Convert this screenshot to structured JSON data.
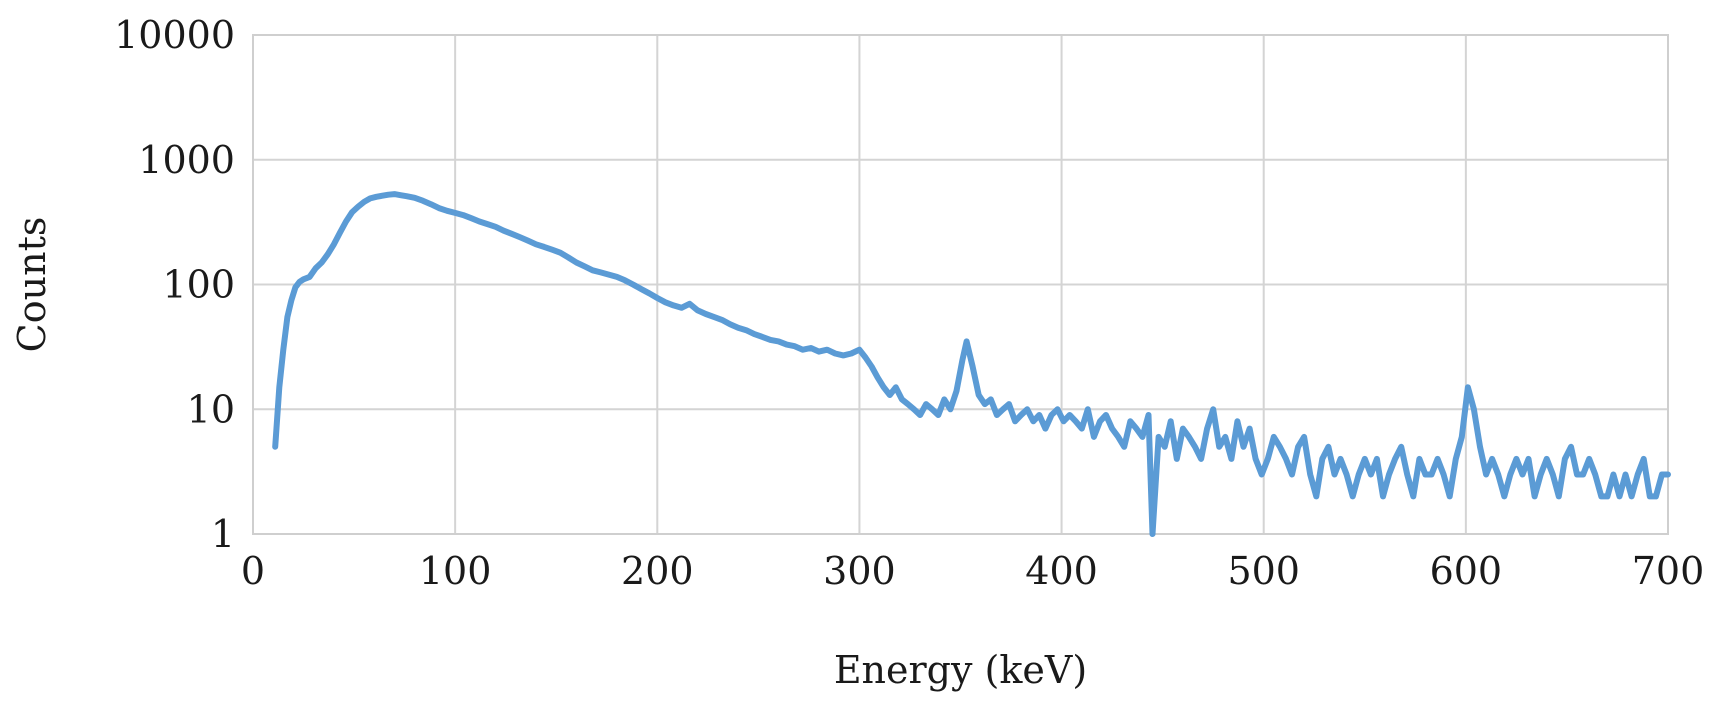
{
  "chart_data": {
    "type": "line",
    "title": "",
    "xlabel": "Energy (keV)",
    "ylabel": "Counts",
    "xlim": [
      0,
      700
    ],
    "ylim": [
      1,
      10000
    ],
    "yscale": "log",
    "grid": true,
    "legend": "none",
    "x_ticks": [
      "0",
      "100",
      "200",
      "300",
      "400",
      "500",
      "600",
      "700"
    ],
    "y_ticks": [
      "1",
      "10",
      "100",
      "1000",
      "10000"
    ],
    "x_tick_values": [
      0,
      100,
      200,
      300,
      400,
      500,
      600,
      700
    ],
    "y_tick_values": [
      1,
      10,
      100,
      1000,
      10000
    ],
    "series": [
      {
        "name": "Counts",
        "color": "#5b9bd5",
        "x": [
          11,
          13,
          15,
          17,
          19,
          21,
          23,
          25,
          28,
          31,
          34,
          37,
          40,
          43,
          46,
          49,
          52,
          55,
          58,
          61,
          64,
          67,
          70,
          73,
          76,
          80,
          84,
          88,
          92,
          96,
          100,
          104,
          108,
          112,
          116,
          120,
          124,
          128,
          132,
          136,
          140,
          144,
          148,
          152,
          156,
          160,
          164,
          168,
          172,
          176,
          180,
          184,
          188,
          192,
          196,
          200,
          204,
          208,
          212,
          216,
          220,
          224,
          228,
          232,
          236,
          240,
          244,
          248,
          252,
          256,
          260,
          264,
          268,
          272,
          276,
          280,
          284,
          288,
          292,
          296,
          300,
          303,
          306,
          309,
          312,
          315,
          318,
          321,
          324,
          327,
          330,
          333,
          336,
          339,
          342,
          345,
          348,
          351,
          353,
          356,
          359,
          362,
          365,
          368,
          371,
          374,
          377,
          380,
          383,
          386,
          389,
          392,
          395,
          398,
          401,
          404,
          407,
          410,
          413,
          416,
          419,
          422,
          425,
          428,
          431,
          434,
          437,
          440,
          443,
          445,
          448,
          451,
          454,
          457,
          460,
          463,
          466,
          469,
          472,
          475,
          478,
          481,
          484,
          487,
          490,
          493,
          496,
          499,
          502,
          505,
          508,
          511,
          514,
          517,
          520,
          523,
          526,
          529,
          532,
          535,
          538,
          541,
          544,
          547,
          550,
          553,
          556,
          559,
          562,
          565,
          568,
          571,
          574,
          577,
          580,
          583,
          586,
          589,
          592,
          595,
          598,
          601,
          604,
          607,
          610,
          613,
          616,
          619,
          622,
          625,
          628,
          631,
          634,
          637,
          640,
          643,
          646,
          649,
          652,
          655,
          658,
          661,
          664,
          667,
          670,
          673,
          676,
          679,
          682,
          685,
          688,
          691,
          694,
          697,
          700
        ],
        "values": [
          5,
          15,
          30,
          55,
          75,
          95,
          105,
          110,
          115,
          135,
          150,
          175,
          210,
          260,
          320,
          380,
          420,
          460,
          490,
          505,
          515,
          525,
          530,
          520,
          510,
          495,
          470,
          440,
          410,
          390,
          375,
          360,
          340,
          320,
          305,
          290,
          270,
          255,
          240,
          225,
          210,
          200,
          190,
          180,
          165,
          150,
          140,
          130,
          125,
          120,
          115,
          108,
          100,
          92,
          85,
          78,
          72,
          68,
          65,
          70,
          62,
          58,
          55,
          52,
          48,
          45,
          43,
          40,
          38,
          36,
          35,
          33,
          32,
          30,
          31,
          29,
          30,
          28,
          27,
          28,
          30,
          26,
          22,
          18,
          15,
          13,
          15,
          12,
          11,
          10,
          9,
          11,
          10,
          9,
          12,
          10,
          14,
          25,
          35,
          22,
          13,
          11,
          12,
          9,
          10,
          11,
          8,
          9,
          10,
          8,
          9,
          7,
          9,
          10,
          8,
          9,
          8,
          7,
          10,
          6,
          8,
          9,
          7,
          6,
          5,
          8,
          7,
          6,
          9,
          1,
          6,
          5,
          8,
          4,
          7,
          6,
          5,
          4,
          7,
          10,
          5,
          6,
          4,
          8,
          5,
          7,
          4,
          3,
          4,
          6,
          5,
          4,
          3,
          5,
          6,
          3,
          2,
          4,
          5,
          3,
          4,
          3,
          2,
          3,
          4,
          3,
          4,
          2,
          3,
          4,
          5,
          3,
          2,
          4,
          3,
          3,
          4,
          3,
          2,
          4,
          6,
          15,
          10,
          5,
          3,
          4,
          3,
          2,
          3,
          4,
          3,
          4,
          2,
          3,
          4,
          3,
          2,
          4,
          5,
          3,
          3,
          4,
          3,
          2,
          2,
          3,
          2,
          3,
          2,
          3,
          4,
          2,
          2,
          3,
          3
        ]
      }
    ]
  }
}
